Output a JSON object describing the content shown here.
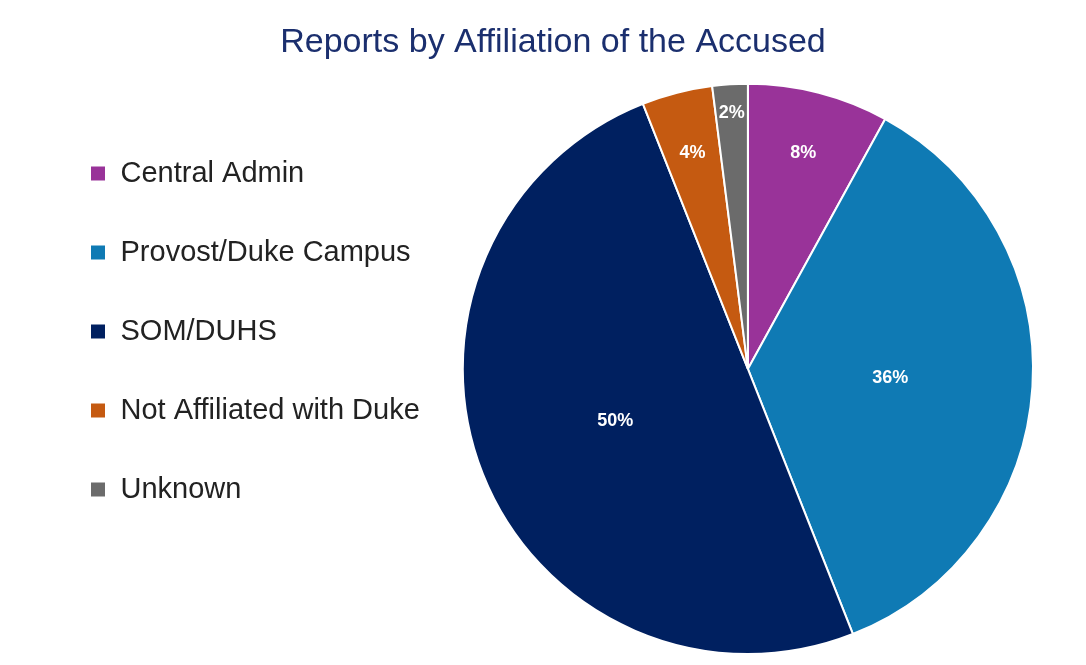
{
  "chart_data": {
    "type": "pie",
    "title": "Reports by Affiliation of the Accused",
    "categories": [
      "Central Admin",
      "Provost/Duke Campus",
      "SOM/DUHS",
      "Not Affiliated with Duke",
      "Unknown"
    ],
    "values": [
      8,
      36,
      50,
      4,
      2
    ],
    "value_labels": [
      "8%",
      "36%",
      "50%",
      "4%",
      "2%"
    ],
    "colors": [
      "#993399",
      "#0F7AB4",
      "#002060",
      "#C55A11",
      "#6B6B6B"
    ],
    "legend": "left",
    "data_labels": true
  }
}
